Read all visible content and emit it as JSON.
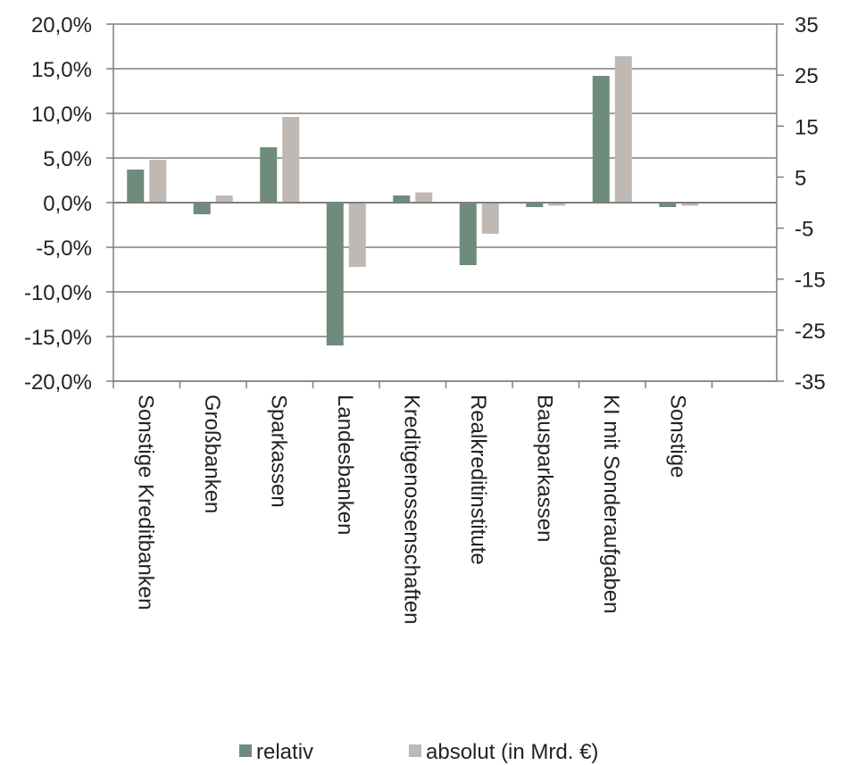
{
  "chart_data": {
    "type": "bar",
    "categories": [
      "Sonstige Kreditbanken",
      "Großbanken",
      "Sparkassen",
      "Landesbanken",
      "Kreditgenossenschaften",
      "Realkreditinstitute",
      "Bausparkassen",
      "KI mit Sonderaufgaben",
      "Sonstige"
    ],
    "series": [
      {
        "name": "relativ",
        "axis": "left",
        "color": "#6f8b7c",
        "values": [
          3.7,
          -1.3,
          6.2,
          -16.0,
          0.8,
          -7.0,
          -0.5,
          14.2,
          -0.5
        ]
      },
      {
        "name": "absolut (in Mrd. €)",
        "axis": "right",
        "color": "#bfb8b3",
        "values": [
          8.4,
          1.4,
          16.8,
          -12.6,
          2.0,
          -6.1,
          -0.6,
          28.7,
          -0.6
        ]
      }
    ],
    "y_left": {
      "ylim": [
        -20,
        20
      ],
      "ticks": [
        "20,0%",
        "15,0%",
        "10,0%",
        "5,0%",
        "0,0%",
        "-5,0%",
        "-10,0%",
        "-15,0%",
        "-20,0%"
      ],
      "tick_values": [
        20,
        15,
        10,
        5,
        0,
        -5,
        -10,
        -15,
        -20
      ]
    },
    "y_right": {
      "ylim": [
        -35,
        35
      ],
      "ticks": [
        "35",
        "25",
        "15",
        "5",
        "-5",
        "-15",
        "-25",
        "-35"
      ],
      "tick_values": [
        35,
        25,
        15,
        5,
        -5,
        -15,
        -25,
        -35
      ]
    },
    "grid": true,
    "legend_position": "bottom",
    "title": "",
    "xlabel": "",
    "ylabel": ""
  }
}
